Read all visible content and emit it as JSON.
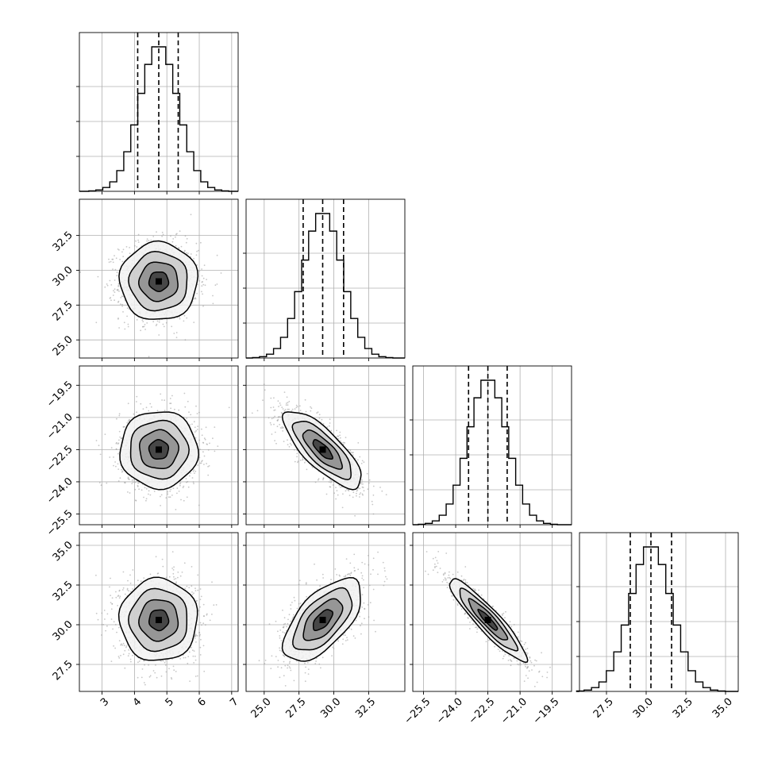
{
  "chart_data": {
    "type": "corner",
    "title": "",
    "parameters": [
      {
        "range": [
          2.3,
          7.2
        ],
        "ticks": [
          3,
          4,
          5,
          6,
          7
        ],
        "tick_labels": [
          "3",
          "4",
          "5",
          "6",
          "7"
        ],
        "quantiles": [
          4.1,
          4.75,
          5.35
        ],
        "mean": 4.75,
        "sd": 0.6
      },
      {
        "range": [
          23.7,
          35.1
        ],
        "ticks": [
          25.0,
          27.5,
          30.0,
          32.5
        ],
        "tick_labels": [
          "25.0",
          "27.5",
          "30.0",
          "32.5"
        ],
        "quantiles": [
          27.8,
          29.2,
          30.7
        ],
        "mean": 29.2,
        "sd": 1.4
      },
      {
        "range": [
          -26.0,
          -18.6
        ],
        "ticks": [
          -25.5,
          -24.0,
          -22.5,
          -21.0,
          -19.5
        ],
        "tick_labels": [
          "−25.5",
          "−24.0",
          "−22.5",
          "−21.0",
          "−19.5"
        ],
        "quantiles": [
          -23.4,
          -22.5,
          -21.6
        ],
        "mean": -22.5,
        "sd": 0.9
      },
      {
        "range": [
          25.8,
          35.8
        ],
        "ticks": [
          27.5,
          30.0,
          32.5,
          35.0
        ],
        "tick_labels": [
          "27.5",
          "30.0",
          "32.5",
          "35.0"
        ],
        "quantiles": [
          29.0,
          30.3,
          31.6
        ],
        "mean": 30.3,
        "sd": 1.3
      }
    ],
    "correlations": {
      "1-0": 0.0,
      "2-0": 0.0,
      "2-1": -0.78,
      "3-0": 0.0,
      "3-1": 0.62,
      "3-2": -0.92
    },
    "histogram_bins": 20,
    "contour_levels_sigma": [
      0.5,
      1.0,
      1.5,
      2.0
    ],
    "grid": true
  },
  "colors": {
    "line": "#000000",
    "grid": "#b0b0b0",
    "points": "#999999",
    "background": "#ffffff"
  }
}
